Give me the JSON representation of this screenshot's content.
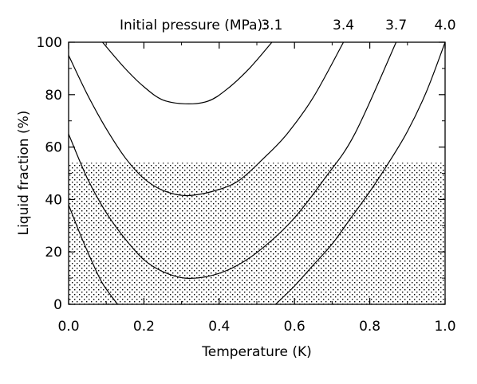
{
  "chart_data": {
    "type": "line",
    "xlabel": "Temperature (K)",
    "ylabel": "Liquid fraction (%)",
    "xlim": [
      0.0,
      1.0
    ],
    "ylim": [
      0,
      100
    ],
    "xticks": [
      "0.0",
      "0.2",
      "0.4",
      "0.6",
      "0.8",
      "1.0"
    ],
    "yticks": [
      "0",
      "20",
      "40",
      "60",
      "80",
      "100"
    ],
    "legend_title": "Initial pressure (MPa):",
    "grid": false,
    "shaded_region": {
      "y_from": 0,
      "y_to": 54,
      "pattern": "dots"
    },
    "series": [
      {
        "name": "3.1",
        "x": [
          0.09,
          0.15,
          0.2,
          0.25,
          0.31,
          0.37,
          0.42,
          0.48,
          0.54
        ],
        "y": [
          100,
          90,
          83,
          78,
          76.5,
          77.5,
          82,
          90,
          100
        ]
      },
      {
        "name": "3.4",
        "x": [
          0.0,
          0.05,
          0.1,
          0.15,
          0.2,
          0.25,
          0.31,
          0.38,
          0.45,
          0.52,
          0.58,
          0.65,
          0.73
        ],
        "y": [
          95,
          80,
          67,
          56,
          48,
          43.5,
          41.5,
          43,
          47,
          56,
          65,
          79,
          100
        ]
      },
      {
        "name": "3.7",
        "x": [
          0.0,
          0.05,
          0.1,
          0.15,
          0.2,
          0.25,
          0.31,
          0.38,
          0.45,
          0.52,
          0.6,
          0.68,
          0.76,
          0.87
        ],
        "y": [
          65,
          48,
          35,
          25,
          17,
          12.5,
          10,
          11,
          15,
          22,
          33,
          48,
          65,
          100
        ]
      },
      {
        "name": "4.0",
        "x": [
          0.0,
          0.03,
          0.06,
          0.09,
          0.13
        ],
        "x2": [
          0.55,
          0.6,
          0.65,
          0.7,
          0.75,
          0.8,
          0.85,
          0.9,
          0.95,
          1.0
        ],
        "y": [
          38,
          27,
          17,
          8,
          0
        ],
        "y2": [
          0,
          7,
          15,
          23,
          33,
          43,
          54,
          66,
          81,
          100
        ]
      }
    ]
  }
}
